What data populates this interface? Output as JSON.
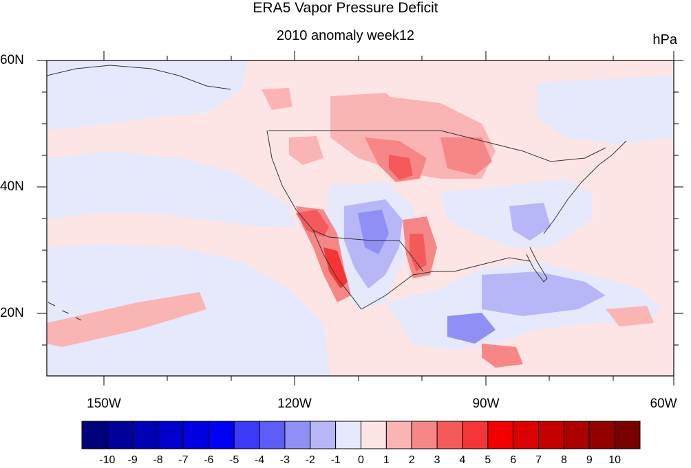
{
  "title": "ERA5 Vapor Pressure Deficit",
  "subtitle": "2010 anomaly week12",
  "units": "hPa",
  "map": {
    "lon_range": [
      -159,
      -60
    ],
    "lat_range": [
      10,
      60
    ],
    "lat_labels": [
      "60N",
      "40N",
      "20N"
    ],
    "lon_labels": [
      "150W",
      "120W",
      "90W",
      "60W"
    ],
    "colors": {
      "background_positive": "#fde5e6",
      "background_negative": "#e6e8fc"
    }
  },
  "colorbar": {
    "levels": [
      "-10",
      "-9",
      "-8",
      "-7",
      "-6",
      "-5",
      "-4",
      "-3",
      "-2",
      "-1",
      "0",
      "1",
      "2",
      "3",
      "4",
      "5",
      "6",
      "7",
      "8",
      "9",
      "10"
    ],
    "colors": [
      "#00007a",
      "#00009a",
      "#0000b4",
      "#0000cc",
      "#0000e0",
      "#0000f5",
      "#3a3af8",
      "#5c5cf6",
      "#8f8ff5",
      "#b7b7f8",
      "#e6e8fc",
      "#fde5e6",
      "#fab4b4",
      "#f78787",
      "#f55a5a",
      "#f53535",
      "#f20000",
      "#dc0000",
      "#c40000",
      "#aa0000",
      "#940000",
      "#7a0000"
    ]
  }
}
